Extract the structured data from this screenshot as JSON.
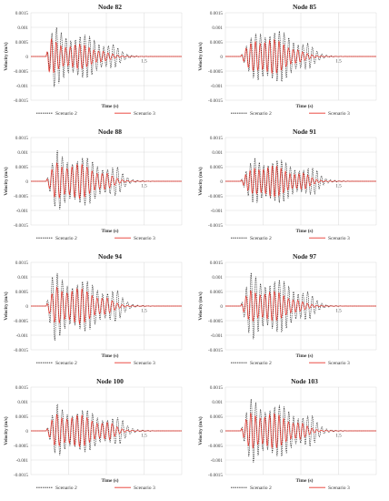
{
  "chart_data": [
    {
      "type": "line",
      "title": "Node 82",
      "xlabel": "Time (s)",
      "ylabel": "Velocity (m/s)",
      "xlim": [
        0,
        2
      ],
      "ylim": [
        -0.0015,
        0.0015
      ],
      "yticks": [
        "0.0015",
        "0.001",
        "0.0005",
        "0",
        "-0.0005",
        "-0.001",
        "-0.0015"
      ],
      "xtick_labels": [
        "1.5"
      ],
      "grid": true,
      "legend": "bottom",
      "series": [
        {
          "name": "Scenario 2",
          "color": "#222222",
          "dash": "dashed",
          "onset": 0.2,
          "amplitude": 0.00105,
          "decay_end": 1.1,
          "peak_time": 0.3,
          "freq": 16,
          "phase": 0.0,
          "end": 2.0
        },
        {
          "name": "Scenario 3",
          "color": "#e8332a",
          "dash": "solid",
          "onset": 0.2,
          "amplitude": 0.00062,
          "decay_end": 0.95,
          "peak_time": 0.25,
          "freq": 16,
          "phase": 0.6,
          "end": 2.0
        }
      ]
    },
    {
      "type": "line",
      "title": "Node 85",
      "xlabel": "Time (s)",
      "ylabel": "Velocity (m/s)",
      "xlim": [
        0,
        2
      ],
      "ylim": [
        -0.0015,
        0.0015
      ],
      "yticks": [
        "0.0015",
        "0.001",
        "0.0005",
        "0",
        "-0.0005",
        "-0.001",
        "-0.0015"
      ],
      "xtick_labels": [
        "1.5"
      ],
      "grid": true,
      "legend": "bottom",
      "series": [
        {
          "name": "Scenario 2",
          "color": "#222222",
          "dash": "dashed",
          "onset": 0.2,
          "amplitude": 0.00115,
          "decay_end": 1.1,
          "peak_time": 0.45,
          "freq": 16,
          "phase": 0.0,
          "end": 2.0
        },
        {
          "name": "Scenario 3",
          "color": "#e8332a",
          "dash": "solid",
          "onset": 0.2,
          "amplitude": 0.00078,
          "decay_end": 0.95,
          "peak_time": 0.4,
          "freq": 16,
          "phase": 0.5,
          "end": 2.0
        }
      ]
    },
    {
      "type": "line",
      "title": "Node 88",
      "xlabel": "Time (s)",
      "ylabel": "Velocity (m/s)",
      "xlim": [
        0,
        2
      ],
      "ylim": [
        -0.0015,
        0.0015
      ],
      "yticks": [
        "0.0015",
        "0.001",
        "0.0005",
        "0",
        "-0.0005",
        "-0.001",
        "-0.0015"
      ],
      "xtick_labels": [
        "1.5"
      ],
      "grid": true,
      "legend": "bottom",
      "series": [
        {
          "name": "Scenario 2",
          "color": "#222222",
          "dash": "dashed",
          "onset": 0.2,
          "amplitude": 0.0011,
          "decay_end": 1.15,
          "peak_time": 0.35,
          "freq": 15,
          "phase": 0.0,
          "end": 2.0
        },
        {
          "name": "Scenario 3",
          "color": "#e8332a",
          "dash": "solid",
          "onset": 0.2,
          "amplitude": 0.0008,
          "decay_end": 1.0,
          "peak_time": 0.35,
          "freq": 15,
          "phase": 0.5,
          "end": 2.0
        }
      ]
    },
    {
      "type": "line",
      "title": "Node 91",
      "xlabel": "Time (s)",
      "ylabel": "Velocity (m/s)",
      "xlim": [
        0,
        2
      ],
      "ylim": [
        -0.0015,
        0.0015
      ],
      "yticks": [
        "0.0015",
        "0.001",
        "0.0005",
        "0",
        "-0.0005",
        "-0.001",
        "-0.0015"
      ],
      "xtick_labels": [
        "1.5"
      ],
      "grid": true,
      "legend": "bottom",
      "series": [
        {
          "name": "Scenario 2",
          "color": "#222222",
          "dash": "dashed",
          "onset": 0.2,
          "amplitude": 0.00095,
          "decay_end": 1.2,
          "peak_time": 0.4,
          "freq": 17,
          "phase": 0.0,
          "end": 2.0
        },
        {
          "name": "Scenario 3",
          "color": "#e8332a",
          "dash": "solid",
          "onset": 0.2,
          "amplitude": 0.00068,
          "decay_end": 1.05,
          "peak_time": 0.4,
          "freq": 17,
          "phase": 0.6,
          "end": 2.0
        }
      ]
    },
    {
      "type": "line",
      "title": "Node 94",
      "xlabel": "Time (s)",
      "ylabel": "Velocity (m/s)",
      "xlim": [
        0,
        2
      ],
      "ylim": [
        -0.0015,
        0.0015
      ],
      "yticks": [
        "0.0015",
        "0.001",
        "0.0005",
        "0",
        "-0.0005",
        "-0.001",
        "-0.0015"
      ],
      "xtick_labels": [
        "1.5"
      ],
      "grid": true,
      "legend": "bottom",
      "series": [
        {
          "name": "Scenario 2",
          "color": "#222222",
          "dash": "dashed",
          "onset": 0.2,
          "amplitude": 0.0012,
          "decay_end": 1.15,
          "peak_time": 0.3,
          "freq": 15,
          "phase": 0.0,
          "end": 2.0
        },
        {
          "name": "Scenario 3",
          "color": "#e8332a",
          "dash": "solid",
          "onset": 0.2,
          "amplitude": 0.00082,
          "decay_end": 1.0,
          "peak_time": 0.35,
          "freq": 15,
          "phase": 0.5,
          "end": 2.0
        }
      ]
    },
    {
      "type": "line",
      "title": "Node 97",
      "xlabel": "Time (s)",
      "ylabel": "Velocity (m/s)",
      "xlim": [
        0,
        2
      ],
      "ylim": [
        -0.0015,
        0.0015
      ],
      "yticks": [
        "0.0015",
        "0.001",
        "0.0005",
        "0",
        "-0.0005",
        "-0.001",
        "-0.0015"
      ],
      "xtick_labels": [
        "1.5"
      ],
      "grid": true,
      "legend": "bottom",
      "series": [
        {
          "name": "Scenario 2",
          "color": "#222222",
          "dash": "dashed",
          "onset": 0.2,
          "amplitude": 0.00125,
          "decay_end": 1.1,
          "peak_time": 0.35,
          "freq": 16,
          "phase": 0.0,
          "end": 2.0
        },
        {
          "name": "Scenario 3",
          "color": "#e8332a",
          "dash": "solid",
          "onset": 0.2,
          "amplitude": 0.0007,
          "decay_end": 0.95,
          "peak_time": 0.35,
          "freq": 16,
          "phase": 0.5,
          "end": 2.0
        }
      ]
    },
    {
      "type": "line",
      "title": "Node 100",
      "xlabel": "Time (s)",
      "ylabel": "Velocity (m/s)",
      "xlim": [
        0,
        2
      ],
      "ylim": [
        -0.0015,
        0.0015
      ],
      "yticks": [
        "0.0015",
        "0.001",
        "0.0005",
        "0",
        "-0.0005",
        "-0.001",
        "-0.0015"
      ],
      "xtick_labels": [
        "1.5"
      ],
      "grid": true,
      "legend": "bottom",
      "series": [
        {
          "name": "Scenario 2",
          "color": "#222222",
          "dash": "dashed",
          "onset": 0.2,
          "amplitude": 0.00095,
          "decay_end": 1.2,
          "peak_time": 0.35,
          "freq": 15,
          "phase": 0.0,
          "end": 2.0
        },
        {
          "name": "Scenario 3",
          "color": "#e8332a",
          "dash": "solid",
          "onset": 0.2,
          "amplitude": 0.00072,
          "decay_end": 1.05,
          "peak_time": 0.35,
          "freq": 15,
          "phase": 0.55,
          "end": 2.0
        }
      ]
    },
    {
      "type": "line",
      "title": "Node 103",
      "xlabel": "Time (s)",
      "ylabel": "Velocity (m/s)",
      "xlim": [
        0,
        2
      ],
      "ylim": [
        -0.0015,
        0.0015
      ],
      "yticks": [
        "0.0015",
        "0.001",
        "0.0005",
        "0",
        "-0.0005",
        "-0.001",
        "-0.0015"
      ],
      "xtick_labels": [
        "1.5"
      ],
      "grid": true,
      "legend": "bottom",
      "series": [
        {
          "name": "Scenario 2",
          "color": "#222222",
          "dash": "dashed",
          "onset": 0.2,
          "amplitude": 0.0012,
          "decay_end": 1.15,
          "peak_time": 0.35,
          "freq": 16,
          "phase": 0.0,
          "end": 2.0
        },
        {
          "name": "Scenario 3",
          "color": "#e8332a",
          "dash": "solid",
          "onset": 0.2,
          "amplitude": 0.0008,
          "decay_end": 1.0,
          "peak_time": 0.35,
          "freq": 16,
          "phase": 0.5,
          "end": 2.0
        }
      ]
    }
  ]
}
